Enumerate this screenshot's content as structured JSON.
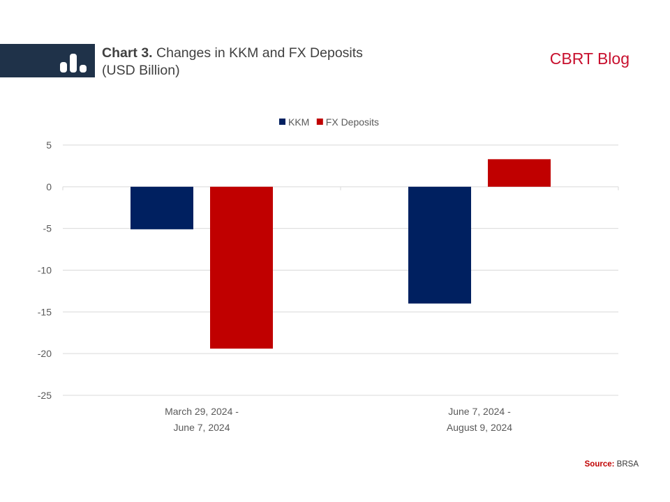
{
  "header": {
    "title_strong": "Chart 3.",
    "title_rest": " Changes in KKM and FX Deposits",
    "title_line2": "(USD Billion)",
    "blog_label": "CBRT Blog",
    "logo_icon": "bar-chart-icon",
    "band_color": "#1f3249",
    "blog_color": "#c8102e"
  },
  "source": {
    "label": "Source:",
    "value": "BRSA"
  },
  "chart_data": {
    "type": "bar",
    "categories": [
      [
        "March 29, 2024 -",
        "June 7, 2024"
      ],
      [
        "June 7, 2024 -",
        "August 9, 2024"
      ]
    ],
    "series": [
      {
        "name": "KKM",
        "color": "#002060",
        "values": [
          -5.1,
          -14.0
        ]
      },
      {
        "name": "FX Deposits",
        "color": "#c00000",
        "values": [
          -19.4,
          3.3
        ]
      }
    ],
    "ylim": [
      -25,
      5
    ],
    "yticks": [
      5,
      0,
      -5,
      -10,
      -15,
      -20,
      -25
    ],
    "grid": true,
    "legend": "top-center",
    "xlabel": "",
    "ylabel": ""
  }
}
